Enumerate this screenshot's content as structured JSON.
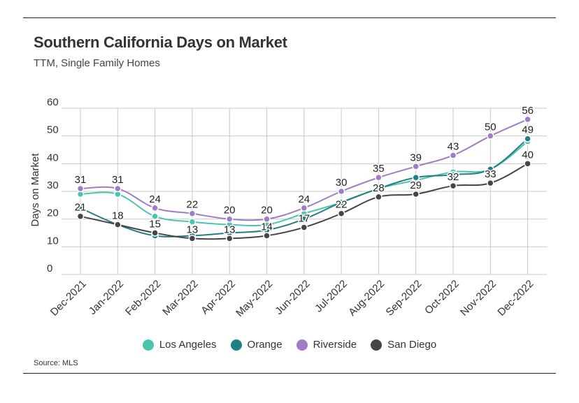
{
  "title": "Southern California Days on Market",
  "subtitle": "TTM, Single Family Homes",
  "source": "Source: MLS",
  "chart_data": {
    "type": "line",
    "title": "Southern California Days on Market",
    "subtitle": "TTM, Single Family Homes",
    "xlabel": "",
    "ylabel": "Days on Market",
    "ylim": [
      0,
      60
    ],
    "yticks": [
      "0",
      "10",
      "20",
      "30",
      "40",
      "50",
      "60"
    ],
    "grid": true,
    "legend_position": "bottom-center",
    "categories": [
      "Dec-2021",
      "Jan-2022",
      "Feb-2022",
      "Mar-2022",
      "Apr-2022",
      "May-2022",
      "Jun-2022",
      "Jul-2022",
      "Aug-2022",
      "Sep-2022",
      "Oct-2022",
      "Nov-2022",
      "Dec-2022"
    ],
    "series": [
      {
        "name": "Los Angeles",
        "color": "#4cc4ae",
        "labeled": false,
        "values": [
          29,
          29,
          21,
          19,
          18,
          18,
          22,
          26,
          31,
          34,
          37,
          38,
          48
        ]
      },
      {
        "name": "Orange",
        "color": "#227e85",
        "labeled": false,
        "values": [
          24,
          18,
          14,
          14,
          15,
          16,
          20,
          26,
          31,
          35,
          36,
          38,
          49
        ]
      },
      {
        "name": "Riverside",
        "color": "#a07cc5",
        "labeled": true,
        "values": [
          31,
          31,
          24,
          22,
          20,
          20,
          24,
          30,
          35,
          39,
          43,
          50,
          56
        ]
      },
      {
        "name": "San Diego",
        "color": "#454545",
        "labeled": true,
        "values": [
          21,
          18,
          15,
          13,
          13,
          14,
          17,
          22,
          28,
          29,
          32,
          33,
          40
        ]
      }
    ],
    "extra_labels": [
      {
        "series": "Orange",
        "index": 12,
        "text": "49"
      }
    ]
  }
}
